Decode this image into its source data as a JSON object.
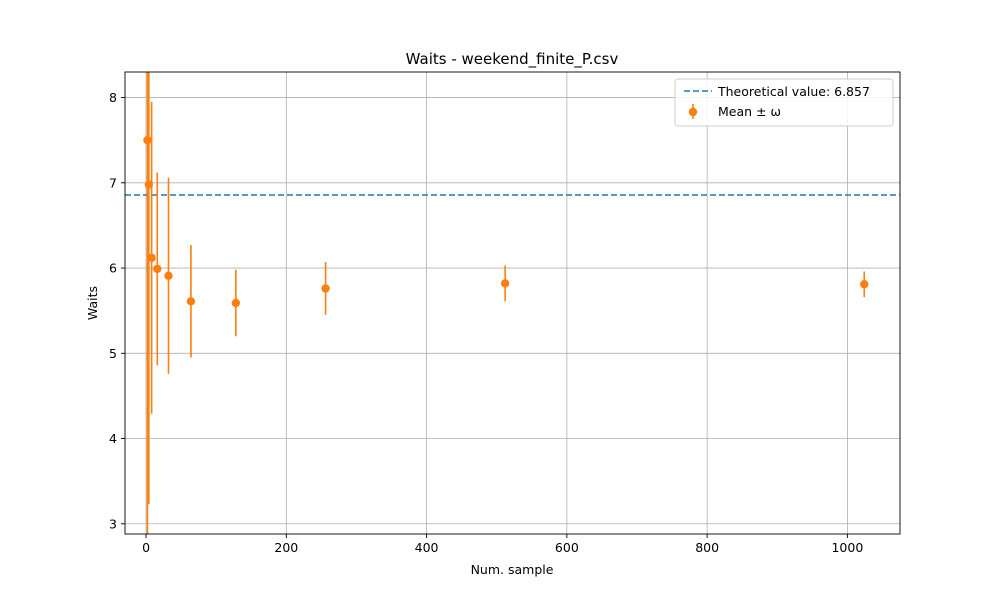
{
  "chart_data": {
    "type": "scatter",
    "title": "Waits - weekend_finite_P.csv",
    "xlabel": "Num. sample",
    "ylabel": "Waits",
    "xlim": [
      -30,
      1075
    ],
    "ylim": [
      2.88,
      8.3
    ],
    "xticks": [
      0,
      200,
      400,
      600,
      800,
      1000
    ],
    "yticks": [
      3,
      4,
      5,
      6,
      7,
      8
    ],
    "grid": true,
    "legend_position": "top-right",
    "reference_line": {
      "name": "Theoretical value: 6.857",
      "value": 6.857,
      "style": "dashed",
      "color": "#1f77b4"
    },
    "series": [
      {
        "name": "Mean ± ω",
        "color": "#ff7f0e",
        "points": [
          {
            "x": 2,
            "y": 7.5,
            "err": 4.8
          },
          {
            "x": 4,
            "y": 6.98,
            "err": 3.75
          },
          {
            "x": 8,
            "y": 6.12,
            "err": 1.83
          },
          {
            "x": 16,
            "y": 5.99,
            "err": 1.13
          },
          {
            "x": 32,
            "y": 5.91,
            "err": 1.15
          },
          {
            "x": 64,
            "y": 5.61,
            "err": 0.66
          },
          {
            "x": 128,
            "y": 5.59,
            "err": 0.39
          },
          {
            "x": 256,
            "y": 5.76,
            "err": 0.31
          },
          {
            "x": 512,
            "y": 5.82,
            "err": 0.21
          },
          {
            "x": 1024,
            "y": 5.81,
            "err": 0.15
          }
        ]
      }
    ]
  }
}
